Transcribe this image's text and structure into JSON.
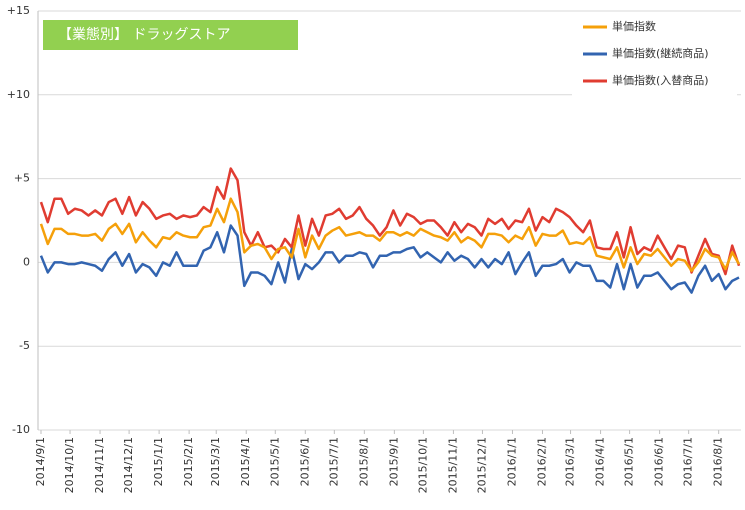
{
  "chart_data": {
    "type": "line",
    "title": "【業態別】 ドラッグストア",
    "x": [
      "2014/9/1",
      "2014/9/8",
      "2014/9/15",
      "2014/9/22",
      "2014/9/29",
      "2014/10/6",
      "2014/10/13",
      "2014/10/20",
      "2014/10/27",
      "2014/11/3",
      "2014/11/10",
      "2014/11/17",
      "2014/11/24",
      "2014/12/1",
      "2014/12/8",
      "2014/12/15",
      "2014/12/22",
      "2014/12/29",
      "2015/1/5",
      "2015/1/12",
      "2015/1/19",
      "2015/1/26",
      "2015/2/2",
      "2015/2/9",
      "2015/2/16",
      "2015/2/23",
      "2015/3/2",
      "2015/3/9",
      "2015/3/16",
      "2015/3/23",
      "2015/3/30",
      "2015/4/6",
      "2015/4/13",
      "2015/4/20",
      "2015/4/27",
      "2015/5/4",
      "2015/5/11",
      "2015/5/18",
      "2015/5/25",
      "2015/6/1",
      "2015/6/8",
      "2015/6/15",
      "2015/6/22",
      "2015/6/29",
      "2015/7/6",
      "2015/7/13",
      "2015/7/20",
      "2015/7/27",
      "2015/8/3",
      "2015/8/10",
      "2015/8/17",
      "2015/8/24",
      "2015/8/31",
      "2015/9/7",
      "2015/9/14",
      "2015/9/21",
      "2015/9/28",
      "2015/10/5",
      "2015/10/12",
      "2015/10/19",
      "2015/10/26",
      "2015/11/2",
      "2015/11/9",
      "2015/11/16",
      "2015/11/23",
      "2015/11/30",
      "2015/12/7",
      "2015/12/14",
      "2015/12/21",
      "2015/12/28",
      "2016/1/4",
      "2016/1/11",
      "2016/1/18",
      "2016/1/25",
      "2016/2/1",
      "2016/2/8",
      "2016/2/15",
      "2016/2/22",
      "2016/2/29",
      "2016/3/7",
      "2016/3/14",
      "2016/3/21",
      "2016/3/28",
      "2016/4/4",
      "2016/4/11",
      "2016/4/18",
      "2016/4/25",
      "2016/5/2",
      "2016/5/9",
      "2016/5/16",
      "2016/5/23",
      "2016/5/30",
      "2016/6/6",
      "2016/6/13",
      "2016/6/20",
      "2016/6/27",
      "2016/7/4",
      "2016/7/11",
      "2016/7/18",
      "2016/7/25",
      "2016/8/1",
      "2016/8/8",
      "2016/8/15",
      "2016/8/22"
    ],
    "xlim": [
      "2014/9/1",
      "2016/8/22"
    ],
    "xticks": [
      "2014/9/1",
      "2014/10/1",
      "2014/11/1",
      "2014/12/1",
      "2015/1/1",
      "2015/2/1",
      "2015/3/1",
      "2015/4/1",
      "2015/5/1",
      "2015/6/1",
      "2015/7/1",
      "2015/8/1",
      "2015/9/1",
      "2015/10/1",
      "2015/11/1",
      "2015/12/1",
      "2016/1/1",
      "2016/2/1",
      "2016/3/1",
      "2016/4/1",
      "2016/5/1",
      "2016/6/1",
      "2016/7/1",
      "2016/8/1"
    ],
    "ylim": [
      -10,
      15
    ],
    "yticks": [
      {
        "value": 15,
        "label": "+15"
      },
      {
        "value": 10,
        "label": "+10"
      },
      {
        "value": 5,
        "label": "+5"
      },
      0,
      -5,
      -10
    ],
    "grid": true,
    "legend": "upper right",
    "series": [
      {
        "name": "単価指数",
        "color": "#f5a00a",
        "values": [
          2.3,
          1.1,
          2.0,
          2.0,
          1.7,
          1.7,
          1.6,
          1.6,
          1.7,
          1.3,
          2.0,
          2.3,
          1.7,
          2.3,
          1.2,
          1.8,
          1.3,
          0.9,
          1.5,
          1.4,
          1.8,
          1.6,
          1.5,
          1.5,
          2.1,
          2.2,
          3.2,
          2.4,
          3.8,
          3.0,
          0.6,
          1.0,
          1.1,
          0.9,
          0.2,
          0.8,
          0.9,
          0.3,
          2.0,
          0.3,
          1.6,
          0.8,
          1.6,
          1.9,
          2.1,
          1.6,
          1.7,
          1.8,
          1.6,
          1.6,
          1.3,
          1.8,
          1.8,
          1.6,
          1.8,
          1.6,
          2.0,
          1.8,
          1.6,
          1.5,
          1.3,
          1.8,
          1.2,
          1.5,
          1.3,
          0.9,
          1.7,
          1.7,
          1.6,
          1.2,
          1.6,
          1.4,
          2.1,
          1.0,
          1.7,
          1.6,
          1.6,
          1.9,
          1.1,
          1.2,
          1.1,
          1.5,
          0.4,
          0.3,
          0.2,
          0.9,
          -0.3,
          0.9,
          -0.1,
          0.5,
          0.4,
          0.8,
          0.3,
          -0.2,
          0.2,
          0.1,
          -0.5,
          0.0,
          0.8,
          0.4,
          0.3,
          -0.4,
          0.6,
          -0.1
        ]
      },
      {
        "name": "単価指数(継続商品)",
        "color": "#3264b0",
        "values": [
          0.4,
          -0.6,
          0.0,
          0.0,
          -0.1,
          -0.1,
          0.0,
          -0.1,
          -0.2,
          -0.5,
          0.2,
          0.6,
          -0.2,
          0.5,
          -0.6,
          -0.1,
          -0.3,
          -0.8,
          0.0,
          -0.2,
          0.6,
          -0.2,
          -0.2,
          -0.2,
          0.7,
          0.9,
          1.8,
          0.6,
          2.2,
          1.6,
          -1.4,
          -0.6,
          -0.6,
          -0.8,
          -1.3,
          0.0,
          -1.2,
          0.8,
          -1.0,
          -0.1,
          -0.4,
          0.0,
          0.6,
          0.6,
          0.0,
          0.4,
          0.4,
          0.6,
          0.5,
          -0.3,
          0.4,
          0.4,
          0.6,
          0.6,
          0.8,
          0.9,
          0.3,
          0.6,
          0.3,
          0.0,
          0.6,
          0.1,
          0.4,
          0.2,
          -0.3,
          0.2,
          -0.3,
          0.2,
          -0.1,
          0.6,
          -0.7,
          0.0,
          0.6,
          -0.8,
          -0.2,
          -0.2,
          -0.1,
          0.2,
          -0.6,
          0.0,
          -0.2,
          -0.2,
          -1.1,
          -1.1,
          -1.5,
          -0.1,
          -1.6,
          -0.1,
          -1.5,
          -0.8,
          -0.8,
          -0.6,
          -1.1,
          -1.6,
          -1.3,
          -1.2,
          -1.8,
          -0.8,
          -0.2,
          -1.1,
          -0.7,
          -1.6,
          -1.1,
          -0.9
        ]
      },
      {
        "name": "単価指数(入替商品)",
        "color": "#e03c31",
        "values": [
          3.6,
          2.4,
          3.8,
          3.8,
          2.9,
          3.2,
          3.1,
          2.8,
          3.1,
          2.8,
          3.6,
          3.8,
          2.9,
          3.9,
          2.8,
          3.6,
          3.2,
          2.6,
          2.8,
          2.9,
          2.6,
          2.8,
          2.7,
          2.8,
          3.3,
          3.0,
          4.5,
          3.8,
          5.6,
          4.9,
          1.8,
          1.0,
          1.8,
          0.9,
          1.0,
          0.6,
          1.4,
          0.9,
          2.8,
          1.0,
          2.6,
          1.6,
          2.8,
          2.9,
          3.2,
          2.6,
          2.8,
          3.3,
          2.6,
          2.2,
          1.6,
          2.1,
          3.1,
          2.2,
          2.9,
          2.7,
          2.3,
          2.5,
          2.5,
          2.1,
          1.6,
          2.4,
          1.8,
          2.3,
          2.1,
          1.6,
          2.6,
          2.3,
          2.6,
          2.0,
          2.5,
          2.4,
          3.2,
          1.9,
          2.7,
          2.4,
          3.2,
          3.0,
          2.7,
          2.2,
          1.8,
          2.5,
          0.9,
          0.8,
          0.8,
          1.8,
          0.3,
          2.1,
          0.5,
          0.9,
          0.7,
          1.6,
          0.9,
          0.2,
          1.0,
          0.9,
          -0.6,
          0.4,
          1.4,
          0.5,
          0.4,
          -0.7,
          1.0,
          -0.2
        ]
      }
    ]
  }
}
